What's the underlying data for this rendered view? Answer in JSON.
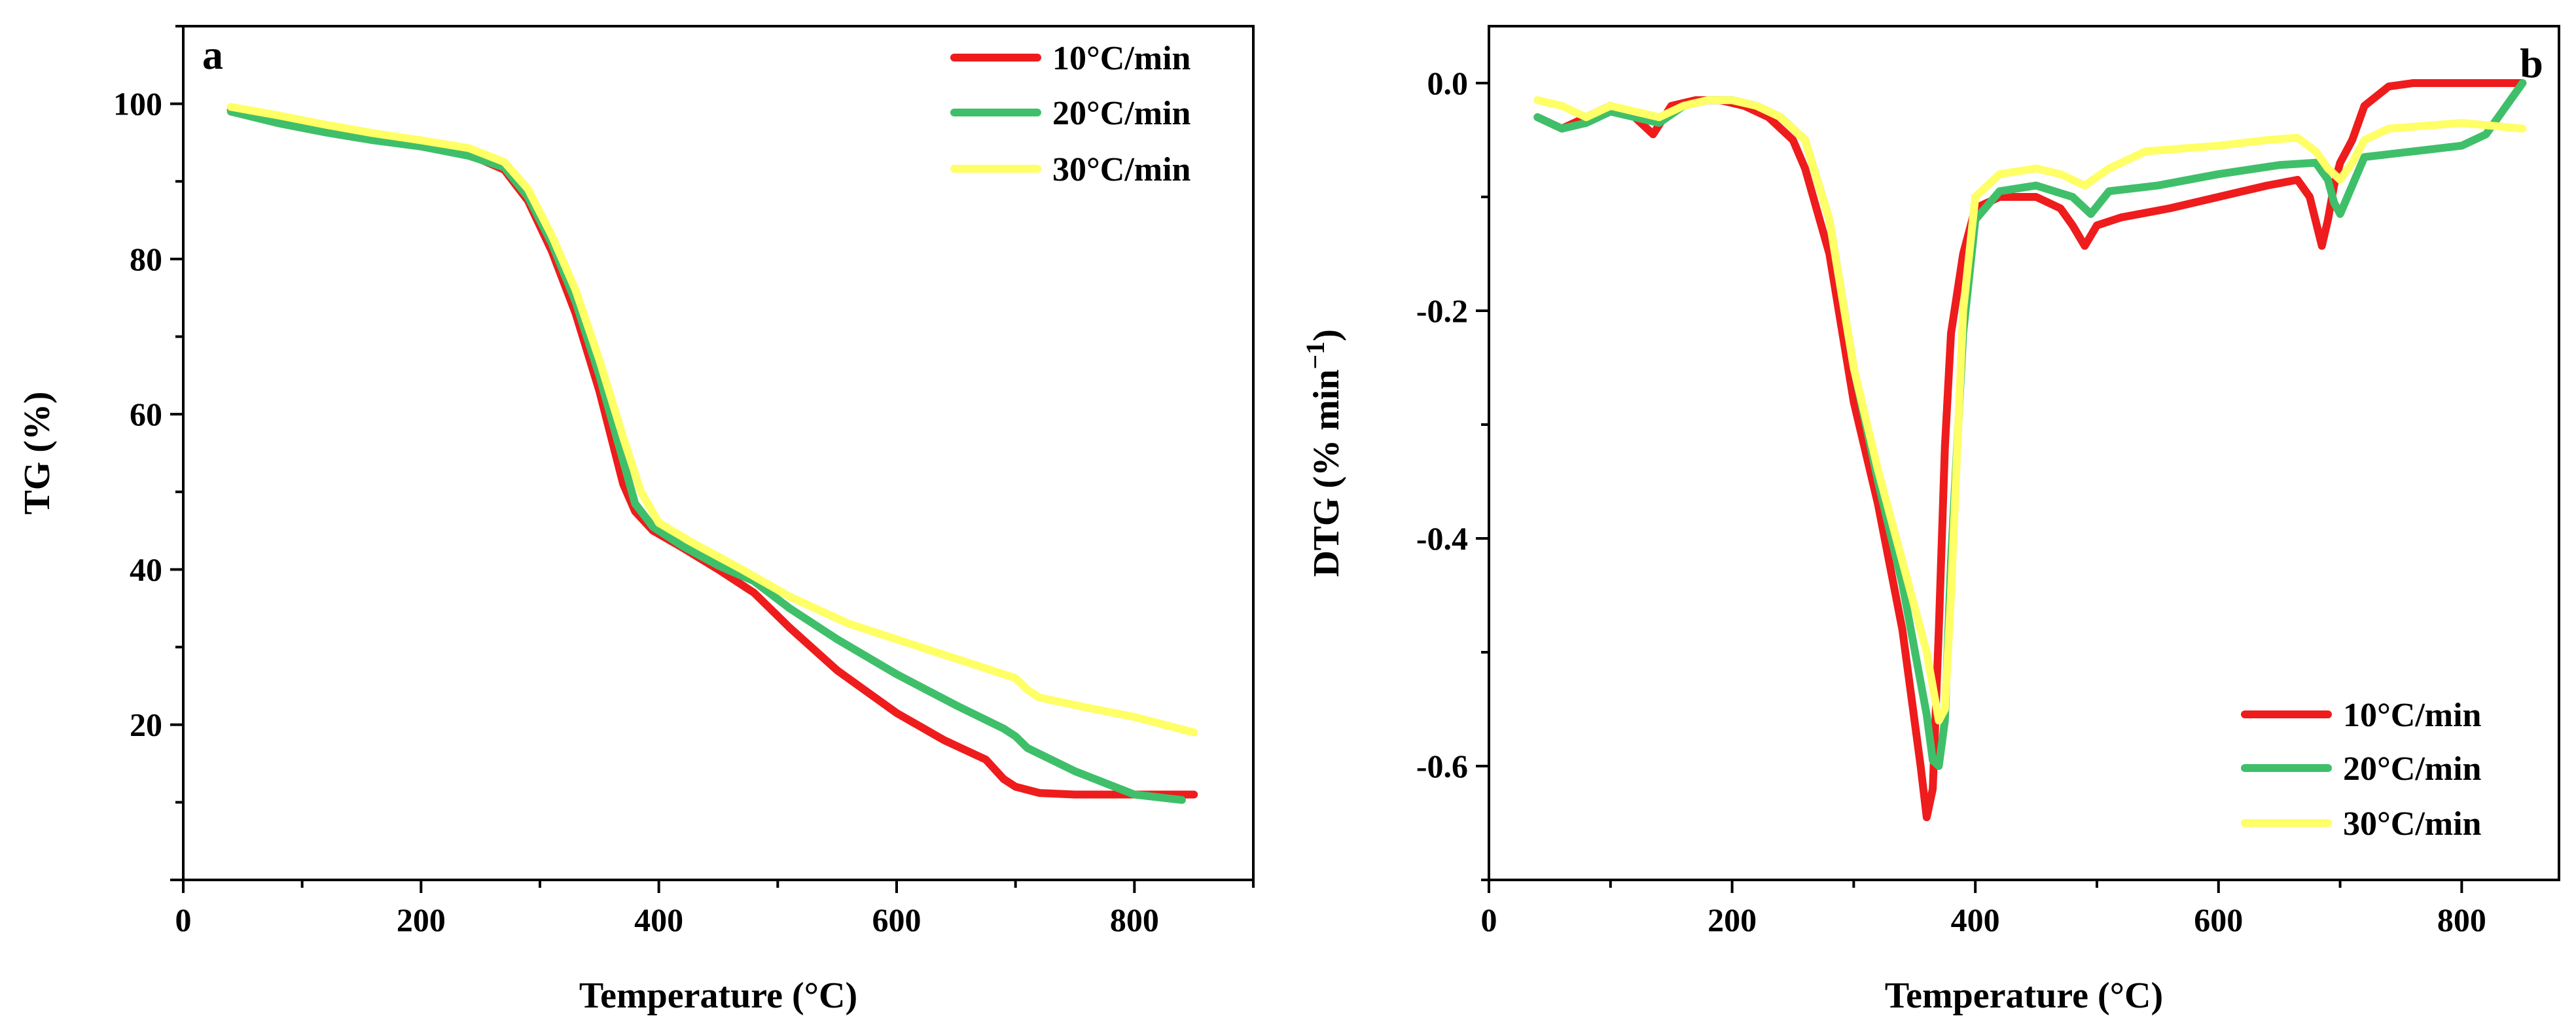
{
  "chart_data": [
    {
      "type": "line",
      "panel_label": "a",
      "xlabel": "Temperature (°C)",
      "ylabel": "TG (%)",
      "xlim": [
        0,
        900
      ],
      "ylim": [
        0,
        110
      ],
      "xticks": [
        0,
        200,
        400,
        600,
        800
      ],
      "yticks": [
        20,
        40,
        60,
        80,
        100
      ],
      "legend_position": "top-right",
      "series": [
        {
          "name": "10°C/min",
          "color": "#ee1c1c",
          "x": [
            40,
            80,
            120,
            160,
            200,
            240,
            270,
            290,
            310,
            330,
            350,
            370,
            380,
            395,
            420,
            450,
            480,
            510,
            550,
            600,
            640,
            675,
            690,
            700,
            720,
            750,
            800,
            850
          ],
          "y": [
            99.2,
            97.8,
            96.8,
            95.5,
            94.6,
            93.5,
            91.5,
            87.5,
            81,
            73,
            63,
            51,
            47.5,
            45,
            42.8,
            40,
            37,
            32.5,
            27,
            21.5,
            18,
            15.5,
            13,
            12,
            11.2,
            11,
            11,
            11
          ]
        },
        {
          "name": "20°C/min",
          "color": "#3fbf6a",
          "x": [
            40,
            80,
            120,
            160,
            200,
            240,
            270,
            290,
            310,
            330,
            350,
            370,
            380,
            395,
            420,
            450,
            480,
            510,
            550,
            600,
            650,
            690,
            700,
            710,
            750,
            800,
            840
          ],
          "y": [
            99,
            97.5,
            96.3,
            95.3,
            94.5,
            93.3,
            91.8,
            88,
            82,
            74.5,
            65,
            54,
            48.5,
            45.5,
            43,
            40.5,
            38.5,
            35,
            31,
            26.5,
            22.5,
            19.5,
            18.5,
            17,
            14,
            11,
            10.3
          ]
        },
        {
          "name": "30°C/min",
          "color": "#ffff66",
          "x": [
            40,
            80,
            120,
            160,
            200,
            240,
            270,
            290,
            310,
            330,
            350,
            370,
            385,
            400,
            430,
            470,
            510,
            560,
            610,
            660,
            700,
            710,
            720,
            760,
            800,
            850
          ],
          "y": [
            99.6,
            98.5,
            97.3,
            96.2,
            95.3,
            94.3,
            92.5,
            89,
            83,
            76,
            67,
            57,
            50,
            46,
            43.3,
            40,
            36.5,
            33,
            30.5,
            28,
            26,
            24.5,
            23.5,
            22.2,
            21,
            19
          ]
        }
      ]
    },
    {
      "type": "line",
      "panel_label": "b",
      "xlabel": "Temperature (°C)",
      "ylabel": "DTG (% min",
      "ylabel_superscript": "−1",
      "ylabel_close": ")",
      "xlim": [
        0,
        880
      ],
      "ylim": [
        -0.7,
        0.05
      ],
      "xticks": [
        0,
        200,
        400,
        600,
        800
      ],
      "yticks": [
        0.0,
        -0.2,
        -0.4,
        -0.6
      ],
      "ytick_labels": [
        "0.0",
        "-0.2",
        "-0.4",
        "-0.6"
      ],
      "legend_position": "bottom-right",
      "series": [
        {
          "name": "10°C/min",
          "color": "#ee1c1c",
          "x": [
            40,
            60,
            80,
            100,
            120,
            135,
            150,
            170,
            190,
            210,
            230,
            250,
            260,
            280,
            300,
            320,
            340,
            355,
            360,
            365,
            370,
            375,
            380,
            390,
            400,
            420,
            450,
            470,
            480,
            490,
            500,
            520,
            560,
            600,
            640,
            665,
            675,
            685,
            690,
            695,
            700,
            710,
            720,
            740,
            760,
            800,
            850
          ],
          "y": [
            -0.03,
            -0.04,
            -0.03,
            -0.02,
            -0.03,
            -0.045,
            -0.02,
            -0.015,
            -0.015,
            -0.02,
            -0.03,
            -0.05,
            -0.075,
            -0.15,
            -0.28,
            -0.37,
            -0.48,
            -0.6,
            -0.645,
            -0.62,
            -0.48,
            -0.32,
            -0.22,
            -0.15,
            -0.11,
            -0.1,
            -0.1,
            -0.11,
            -0.125,
            -0.143,
            -0.125,
            -0.118,
            -0.11,
            -0.1,
            -0.09,
            -0.085,
            -0.1,
            -0.143,
            -0.12,
            -0.09,
            -0.07,
            -0.05,
            -0.02,
            -0.003,
            0,
            0,
            0
          ]
        },
        {
          "name": "20°C/min",
          "color": "#3fbf6a",
          "x": [
            40,
            60,
            80,
            100,
            120,
            140,
            160,
            180,
            200,
            220,
            240,
            260,
            280,
            300,
            320,
            340,
            360,
            365,
            370,
            375,
            380,
            390,
            400,
            420,
            450,
            480,
            495,
            510,
            550,
            600,
            650,
            680,
            690,
            695,
            700,
            710,
            720,
            760,
            800,
            820,
            830,
            850
          ],
          "y": [
            -0.03,
            -0.04,
            -0.035,
            -0.025,
            -0.03,
            -0.035,
            -0.02,
            -0.015,
            -0.015,
            -0.02,
            -0.03,
            -0.05,
            -0.12,
            -0.25,
            -0.35,
            -0.44,
            -0.555,
            -0.595,
            -0.6,
            -0.56,
            -0.42,
            -0.22,
            -0.12,
            -0.095,
            -0.09,
            -0.1,
            -0.115,
            -0.095,
            -0.09,
            -0.08,
            -0.072,
            -0.07,
            -0.085,
            -0.105,
            -0.115,
            -0.09,
            -0.065,
            -0.06,
            -0.055,
            -0.045,
            -0.03,
            0
          ]
        },
        {
          "name": "30°C/min",
          "color": "#ffff66",
          "x": [
            40,
            60,
            80,
            100,
            120,
            140,
            160,
            180,
            200,
            220,
            240,
            260,
            280,
            300,
            320,
            340,
            360,
            370,
            375,
            380,
            390,
            400,
            420,
            450,
            470,
            490,
            510,
            540,
            600,
            640,
            665,
            680,
            690,
            700,
            710,
            720,
            740,
            800,
            850
          ],
          "y": [
            -0.015,
            -0.02,
            -0.03,
            -0.02,
            -0.025,
            -0.03,
            -0.02,
            -0.015,
            -0.015,
            -0.02,
            -0.03,
            -0.05,
            -0.12,
            -0.25,
            -0.34,
            -0.42,
            -0.5,
            -0.56,
            -0.55,
            -0.45,
            -0.2,
            -0.1,
            -0.08,
            -0.075,
            -0.08,
            -0.09,
            -0.075,
            -0.06,
            -0.055,
            -0.05,
            -0.048,
            -0.06,
            -0.075,
            -0.085,
            -0.07,
            -0.05,
            -0.04,
            -0.035,
            -0.04
          ]
        }
      ]
    }
  ]
}
